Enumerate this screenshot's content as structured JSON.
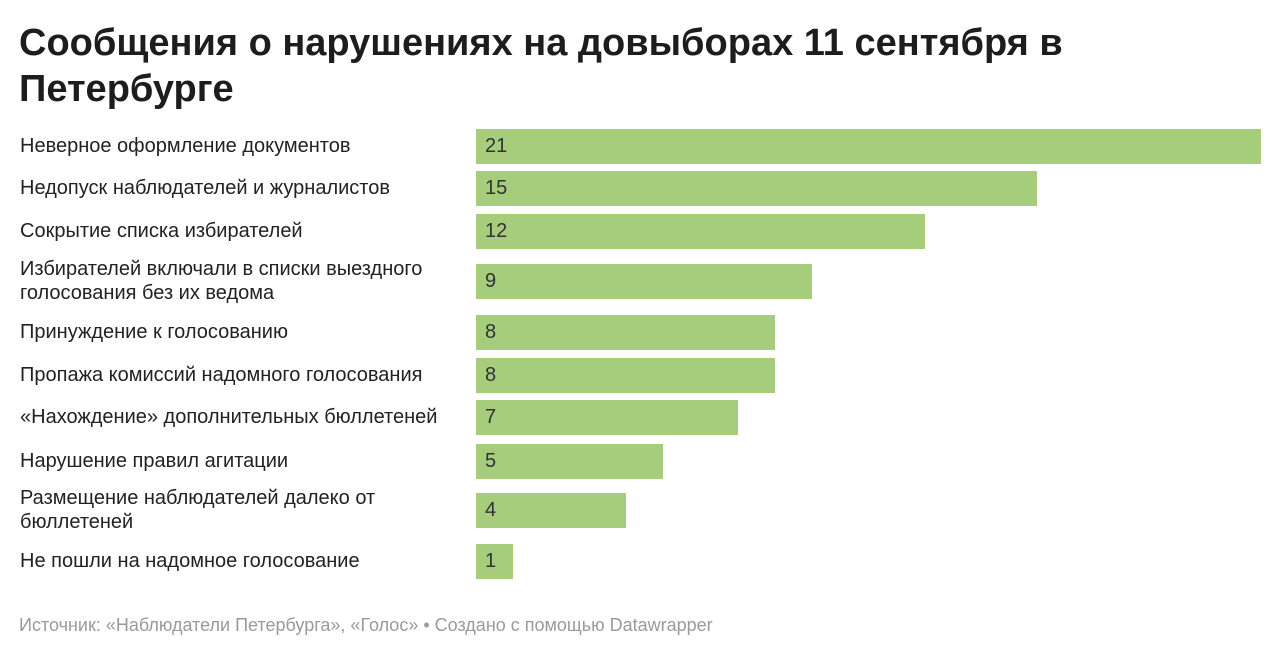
{
  "header": {
    "title": "Сообщения о нарушениях на довыборах 11 сентября в Петербурге"
  },
  "footer": {
    "source_label": "Источник: «Наблюдатели Петербурга», «Голос» • Создано с помощью Datawrapper"
  },
  "colors": {
    "bar": "#a5cd7b"
  },
  "chart_data": {
    "type": "bar",
    "orientation": "horizontal",
    "title": "Сообщения о нарушениях на довыборах 11 сентября в Петербурге",
    "xlabel": "",
    "ylabel": "",
    "xlim": [
      0,
      21
    ],
    "grid": false,
    "categories": [
      "Неверное оформление документов",
      "Недопуск наблюдателей и журналистов",
      "Сокрытие списка избирателей",
      "Избирателей включали в списки выездного голосования без их ведома",
      "Принуждение к голосованию",
      "Пропажа комиссий надомного голосования",
      "«Нахождение» дополнительных бюллетеней",
      "Нарушение правил агитации",
      "Размещение наблюдателей далеко от бюллетеней",
      "Не пошли на надомное голосование"
    ],
    "values": [
      21,
      15,
      12,
      9,
      8,
      8,
      7,
      5,
      4,
      1
    ]
  }
}
